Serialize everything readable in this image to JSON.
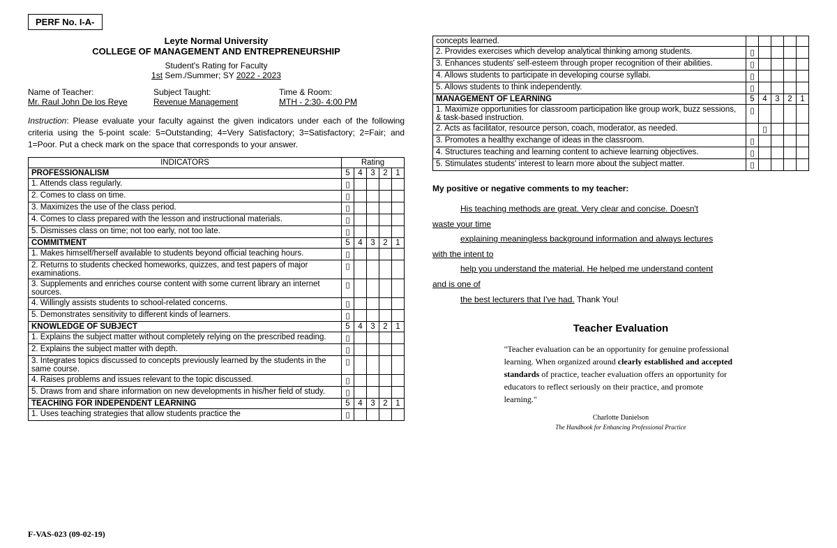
{
  "perf": "PERF No. I-A-",
  "university": "Leyte Normal University",
  "college": "COLLEGE OF MANAGEMENT AND ENTREPRENEURSHIP",
  "rating_title": "Student's Rating for Faculty",
  "sem_prefix": "1st",
  "sem_mid": " Sem./Summer; SY ",
  "sem_year": "2022 - 2023",
  "teacher_label": "Name of Teacher:",
  "teacher_name": "Mr. Raul John De los Reye",
  "subject_label": "Subject Taught:",
  "subject_name": "Revenue Management",
  "time_label": "Time & Room:",
  "time_value": "MTH - 2:30- 4:00 PM",
  "instruction_label": "Instruction",
  "instruction_text": ": Please evaluate your faculty against the given indicators under each of the following criteria using the 5-point scale: 5=Outstanding; 4=Very Satisfactory; 3=Satisfactory; 2=Fair; and 1=Poor. Put a check mark on the space that corresponds to your answer.",
  "head_indicators": "INDICATORS",
  "head_rating": "Rating",
  "scale": [
    "5",
    "4",
    "3",
    "2",
    "1"
  ],
  "check_glyph": "▯",
  "sections_left": [
    {
      "title": "PROFESSIONALISM",
      "items": [
        {
          "t": "1. Attends class regularly.",
          "c": 0
        },
        {
          "t": "2. Comes to class on time.",
          "c": 0
        },
        {
          "t": "3. Maximizes the use of the class period.",
          "c": 0
        },
        {
          "t": "4. Comes to class prepared with the lesson and instructional materials.",
          "c": 0
        },
        {
          "t": "5. Dismisses class on time; not too early, not too late.",
          "c": 0
        }
      ]
    },
    {
      "title": "COMMITMENT",
      "items": [
        {
          "t": "1. Makes himself/herself available to students beyond official teaching hours.",
          "c": 0
        },
        {
          "t": "2. Returns to students checked homeworks, quizzes, and test papers of major examinations.",
          "c": 0
        },
        {
          "t": "3. Supplements and enriches course content with some current library an internet sources.",
          "c": 0
        },
        {
          "t": "4. Willingly assists students to school-related concerns.",
          "c": 0
        },
        {
          "t": "5. Demonstrates sensitivity to different kinds of learners.",
          "c": 0
        }
      ]
    },
    {
      "title": "KNOWLEDGE OF SUBJECT",
      "items": [
        {
          "t": "1. Explains the subject matter without completely relying on the prescribed reading.",
          "c": 0
        },
        {
          "t": "2. Explains the subject matter with depth.",
          "c": 0
        },
        {
          "t": "3. Integrates topics discussed to concepts previously learned by the students in the same course.",
          "c": 0
        },
        {
          "t": "4. Raises problems and issues relevant to the topic discussed.",
          "c": 0
        },
        {
          "t": "5. Draws from and share information on new developments in his/her field of study.",
          "c": 0
        }
      ]
    },
    {
      "title": "TEACHING FOR INDEPENDENT LEARNING",
      "items": [
        {
          "t": "1. Uses teaching strategies that allow students practice the",
          "c": 0
        }
      ]
    }
  ],
  "right_top_rows": [
    {
      "t": "concepts learned.",
      "c": null
    },
    {
      "t": "2. Provides exercises which develop analytical thinking among students.",
      "c": 0
    },
    {
      "t": "3. Enhances students' self-esteem through proper recognition of their abilities.",
      "c": 0
    },
    {
      "t": "4. Allows students to participate in developing course syllabi.",
      "c": 0
    },
    {
      "t": "5. Allows students to think independently.",
      "c": 0
    }
  ],
  "sections_right": [
    {
      "title": "MANAGEMENT OF LEARNING",
      "items": [
        {
          "t": "1. Maximize opportunities for classroom participation like group work, buzz sessions, & task-based instruction.",
          "c": 0
        },
        {
          "t": "2. Acts as facilitator, resource person, coach, moderator, as needed.",
          "c": 1
        },
        {
          "t": "3. Promotes a healthy exchange of ideas in the classroom.",
          "c": 0
        },
        {
          "t": "4. Structures teaching and learning content to achieve learning objectives.",
          "c": 0
        },
        {
          "t": "5. Stimulates students' interest to learn more about the subject matter.",
          "c": 0
        }
      ]
    }
  ],
  "comments_header": "My positive or negative comments to my teacher:",
  "comment_lines": [
    {
      "indent": true,
      "u": true,
      "t": "His teaching methods are great. Very clear and concise. Doesn't "
    },
    {
      "indent": false,
      "u": true,
      "t": "waste your time"
    },
    {
      "indent": true,
      "u": true,
      "t": "explaining meaningless background information and always lectures "
    },
    {
      "indent": false,
      "u": true,
      "t": "with the intent to"
    },
    {
      "indent": true,
      "u": true,
      "t": "help you understand the material. He helped me understand content "
    },
    {
      "indent": false,
      "u": true,
      "t": "and is one of"
    },
    {
      "indent": true,
      "u": true,
      "t": "the best lecturers that I've had."
    },
    {
      "indent": false,
      "u": false,
      "t": " Thank You!",
      "sameline": true
    }
  ],
  "te_title": "Teacher Evaluation",
  "quote_pre": "\"Teacher evaluation can be an opportunity for genuine professional learning. When organized around ",
  "quote_bold": "clearly established and accepted standards",
  "quote_post": " of practice, teacher evaluation offers an opportunity for educators to reflect seriously on their practice, and promote learning.\"",
  "quote_author": "Charlotte Danielson",
  "quote_book": "The Handbook for Enhancing Professional Practice",
  "footer": "F-VAS-023 (09-02-19)"
}
